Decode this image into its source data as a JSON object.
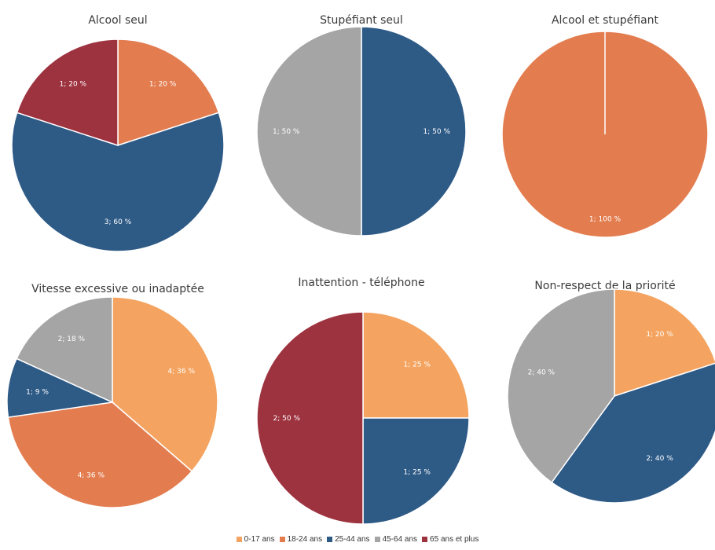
{
  "colors": {
    "0-17 ans": "#F4A460",
    "18-24 ans": "#E37D50",
    "25-44 ans": "#2E5A86",
    "45-64 ans": "#A5A5A5",
    "65 ans et plus": "#9E3340"
  },
  "legend": [
    "0-17 ans",
    "18-24 ans",
    "25-44 ans",
    "45-64 ans",
    "65 ans et plus"
  ],
  "chart_data": [
    {
      "type": "pie",
      "title": "Alcool seul",
      "slices": [
        {
          "category": "18-24 ans",
          "value": 20,
          "label": "1; 20 %"
        },
        {
          "category": "25-44 ans",
          "value": 60,
          "label": "3; 60 %"
        },
        {
          "category": "65 ans et plus",
          "value": 20,
          "label": "1; 20 %"
        }
      ]
    },
    {
      "type": "pie",
      "title": "Stupéfiant seul",
      "slices": [
        {
          "category": "25-44 ans",
          "value": 50,
          "label": "1; 50 %"
        },
        {
          "category": "45-64 ans",
          "value": 50,
          "label": "1; 50 %"
        }
      ]
    },
    {
      "type": "pie",
      "title": "Alcool et stupéfiant",
      "slices": [
        {
          "category": "18-24 ans",
          "value": 100,
          "label": "1; 100 %"
        }
      ]
    },
    {
      "type": "pie",
      "title": "Vitesse excessive ou inadaptée",
      "slices": [
        {
          "category": "0-17 ans",
          "value": 36,
          "label": "4; 36 %"
        },
        {
          "category": "18-24 ans",
          "value": 36,
          "label": "4; 36 %"
        },
        {
          "category": "25-44 ans",
          "value": 9,
          "label": "1; 9 %"
        },
        {
          "category": "45-64 ans",
          "value": 18,
          "label": "2; 18 %"
        }
      ]
    },
    {
      "type": "pie",
      "title": "Inattention - téléphone",
      "slices": [
        {
          "category": "0-17 ans",
          "value": 25,
          "label": "1; 25 %"
        },
        {
          "category": "25-44 ans",
          "value": 25,
          "label": "1; 25 %"
        },
        {
          "category": "65 ans et plus",
          "value": 50,
          "label": "2; 50 %"
        }
      ]
    },
    {
      "type": "pie",
      "title": "Non-respect de la priorité",
      "slices": [
        {
          "category": "0-17 ans",
          "value": 20,
          "label": "1; 20 %"
        },
        {
          "category": "25-44 ans",
          "value": 40,
          "label": "2; 40 %"
        },
        {
          "category": "45-64 ans",
          "value": 40,
          "label": "2; 40 %"
        }
      ]
    }
  ]
}
